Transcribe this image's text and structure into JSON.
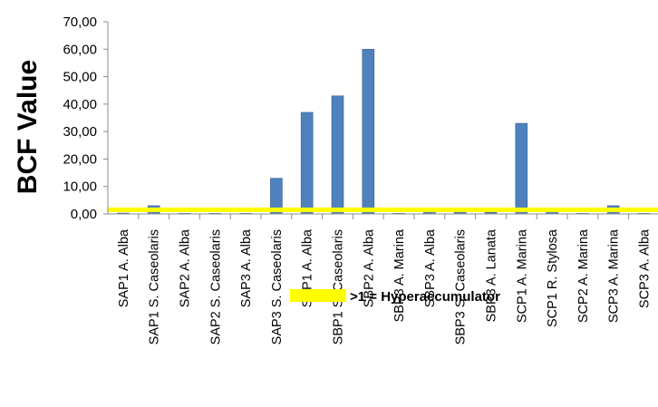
{
  "chart_data": {
    "type": "bar",
    "ylabel": "BCF Value",
    "ylim": [
      0,
      70
    ],
    "yticks": [
      "0,00",
      "10,00",
      "20,00",
      "30,00",
      "40,00",
      "50,00",
      "60,00",
      "70,00"
    ],
    "categories": [
      "SAP1 A. Alba",
      "SAP1 S. Caseolaris",
      "SAP2 A. Alba",
      "SAP2 S. Caseolaris",
      "SAP3 A. Alba",
      "SAP3 S. Caseolaris",
      "SBP1 A. Alba",
      "SBP1 S. Caseolaris",
      "SBP2 A. Alba",
      "SBP3 A. Marina",
      "SBP3 A. Alba",
      "SBP3 S. Caseolaris",
      "SBP3 A. Lanata",
      "SCP1 A. Marina",
      "SCP1 R. Stylosa",
      "SCP2 A. Marina",
      "SCP3 A. Marina",
      "SCP3 A. Alba"
    ],
    "values": [
      0.3,
      3.0,
      0.2,
      0.2,
      0.2,
      13.0,
      37.0,
      43.0,
      60.0,
      0.2,
      1.2,
      1.2,
      0.6,
      33.0,
      1.0,
      0.2,
      3.0,
      0.2
    ],
    "bar_color": "#4f81bd",
    "threshold": {
      "value": 1.5,
      "color": "#ffff00",
      "label": ">1 = Hyperaccumulator"
    },
    "grid": false,
    "legend_position": "bottom"
  }
}
